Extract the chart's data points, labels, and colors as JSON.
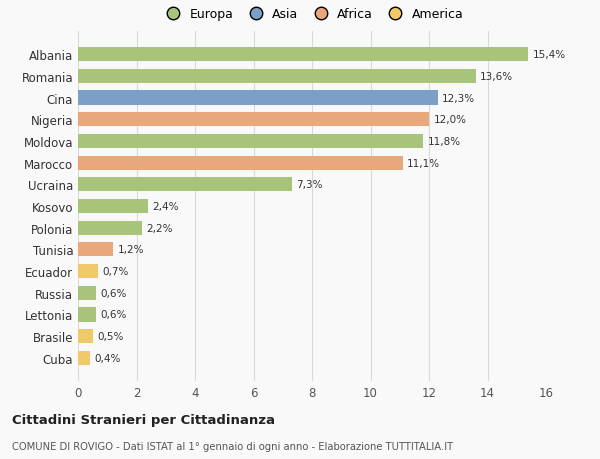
{
  "categories": [
    "Albania",
    "Romania",
    "Cina",
    "Nigeria",
    "Moldova",
    "Marocco",
    "Ucraina",
    "Kosovo",
    "Polonia",
    "Tunisia",
    "Ecuador",
    "Russia",
    "Lettonia",
    "Brasile",
    "Cuba"
  ],
  "values": [
    15.4,
    13.6,
    12.3,
    12.0,
    11.8,
    11.1,
    7.3,
    2.4,
    2.2,
    1.2,
    0.7,
    0.6,
    0.6,
    0.5,
    0.4
  ],
  "labels": [
    "15,4%",
    "13,6%",
    "12,3%",
    "12,0%",
    "11,8%",
    "11,1%",
    "7,3%",
    "2,4%",
    "2,2%",
    "1,2%",
    "0,7%",
    "0,6%",
    "0,6%",
    "0,5%",
    "0,4%"
  ],
  "colors": [
    "#a8c47a",
    "#a8c47a",
    "#7b9fc7",
    "#e8a87c",
    "#a8c47a",
    "#e8a87c",
    "#a8c47a",
    "#a8c47a",
    "#a8c47a",
    "#e8a87c",
    "#f0c96b",
    "#a8c47a",
    "#a8c47a",
    "#f0c96b",
    "#f0c96b"
  ],
  "legend_labels": [
    "Europa",
    "Asia",
    "Africa",
    "America"
  ],
  "legend_colors": [
    "#a8c47a",
    "#7b9fc7",
    "#e8a87c",
    "#f0c96b"
  ],
  "title": "Cittadini Stranieri per Cittadinanza",
  "subtitle": "COMUNE DI ROVIGO - Dati ISTAT al 1° gennaio di ogni anno - Elaborazione TUTTITALIA.IT",
  "xlim": [
    0,
    16
  ],
  "xticks": [
    0,
    2,
    4,
    6,
    8,
    10,
    12,
    14,
    16
  ],
  "background_color": "#f9f9f9",
  "grid_color": "#d8d8d8"
}
